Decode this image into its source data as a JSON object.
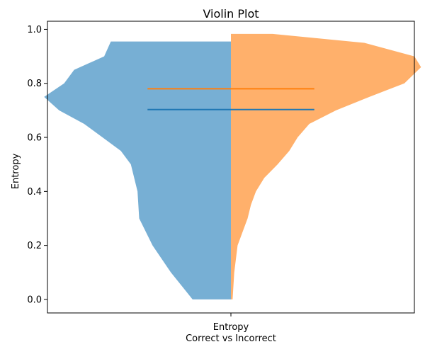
{
  "chart_data": {
    "type": "violin",
    "title": "Violin Plot",
    "xlabel": "Correct vs Incorrect",
    "ylabel": "Entropy",
    "x_tick_labels": [
      "Entropy"
    ],
    "ylim": [
      -0.05,
      1.03
    ],
    "y_ticks": [
      0.0,
      0.2,
      0.4,
      0.6,
      0.8,
      1.0
    ],
    "y_tick_labels": [
      "0.0",
      "0.2",
      "0.4",
      "0.6",
      "0.8",
      "1.0"
    ],
    "series": [
      {
        "name": "Correct",
        "side": "left",
        "color": "#1f77b4",
        "fill_color": "#77afd4",
        "range": [
          0.0,
          0.955
        ],
        "mean": 0.703,
        "density_profile": [
          [
            0.0,
            0.23
          ],
          [
            0.1,
            0.36
          ],
          [
            0.2,
            0.47
          ],
          [
            0.3,
            0.55
          ],
          [
            0.4,
            0.56
          ],
          [
            0.5,
            0.6
          ],
          [
            0.55,
            0.66
          ],
          [
            0.6,
            0.77
          ],
          [
            0.65,
            0.88
          ],
          [
            0.7,
            1.03
          ],
          [
            0.75,
            1.12
          ],
          [
            0.8,
            1.0
          ],
          [
            0.85,
            0.94
          ],
          [
            0.9,
            0.76
          ],
          [
            0.955,
            0.72
          ]
        ]
      },
      {
        "name": "Incorrect",
        "side": "right",
        "color": "#ff7f0e",
        "fill_color": "#ffb06b",
        "range": [
          0.0,
          0.983
        ],
        "mean": 0.78,
        "density_profile": [
          [
            0.0,
            0.01
          ],
          [
            0.1,
            0.02
          ],
          [
            0.2,
            0.04
          ],
          [
            0.3,
            0.1
          ],
          [
            0.35,
            0.12
          ],
          [
            0.4,
            0.15
          ],
          [
            0.45,
            0.2
          ],
          [
            0.5,
            0.28
          ],
          [
            0.55,
            0.35
          ],
          [
            0.6,
            0.4
          ],
          [
            0.65,
            0.47
          ],
          [
            0.7,
            0.63
          ],
          [
            0.75,
            0.83
          ],
          [
            0.8,
            1.04
          ],
          [
            0.86,
            1.14
          ],
          [
            0.9,
            1.1
          ],
          [
            0.95,
            0.8
          ],
          [
            0.983,
            0.25
          ]
        ]
      }
    ],
    "axis_range_x": [
      -1.1,
      1.1
    ]
  }
}
